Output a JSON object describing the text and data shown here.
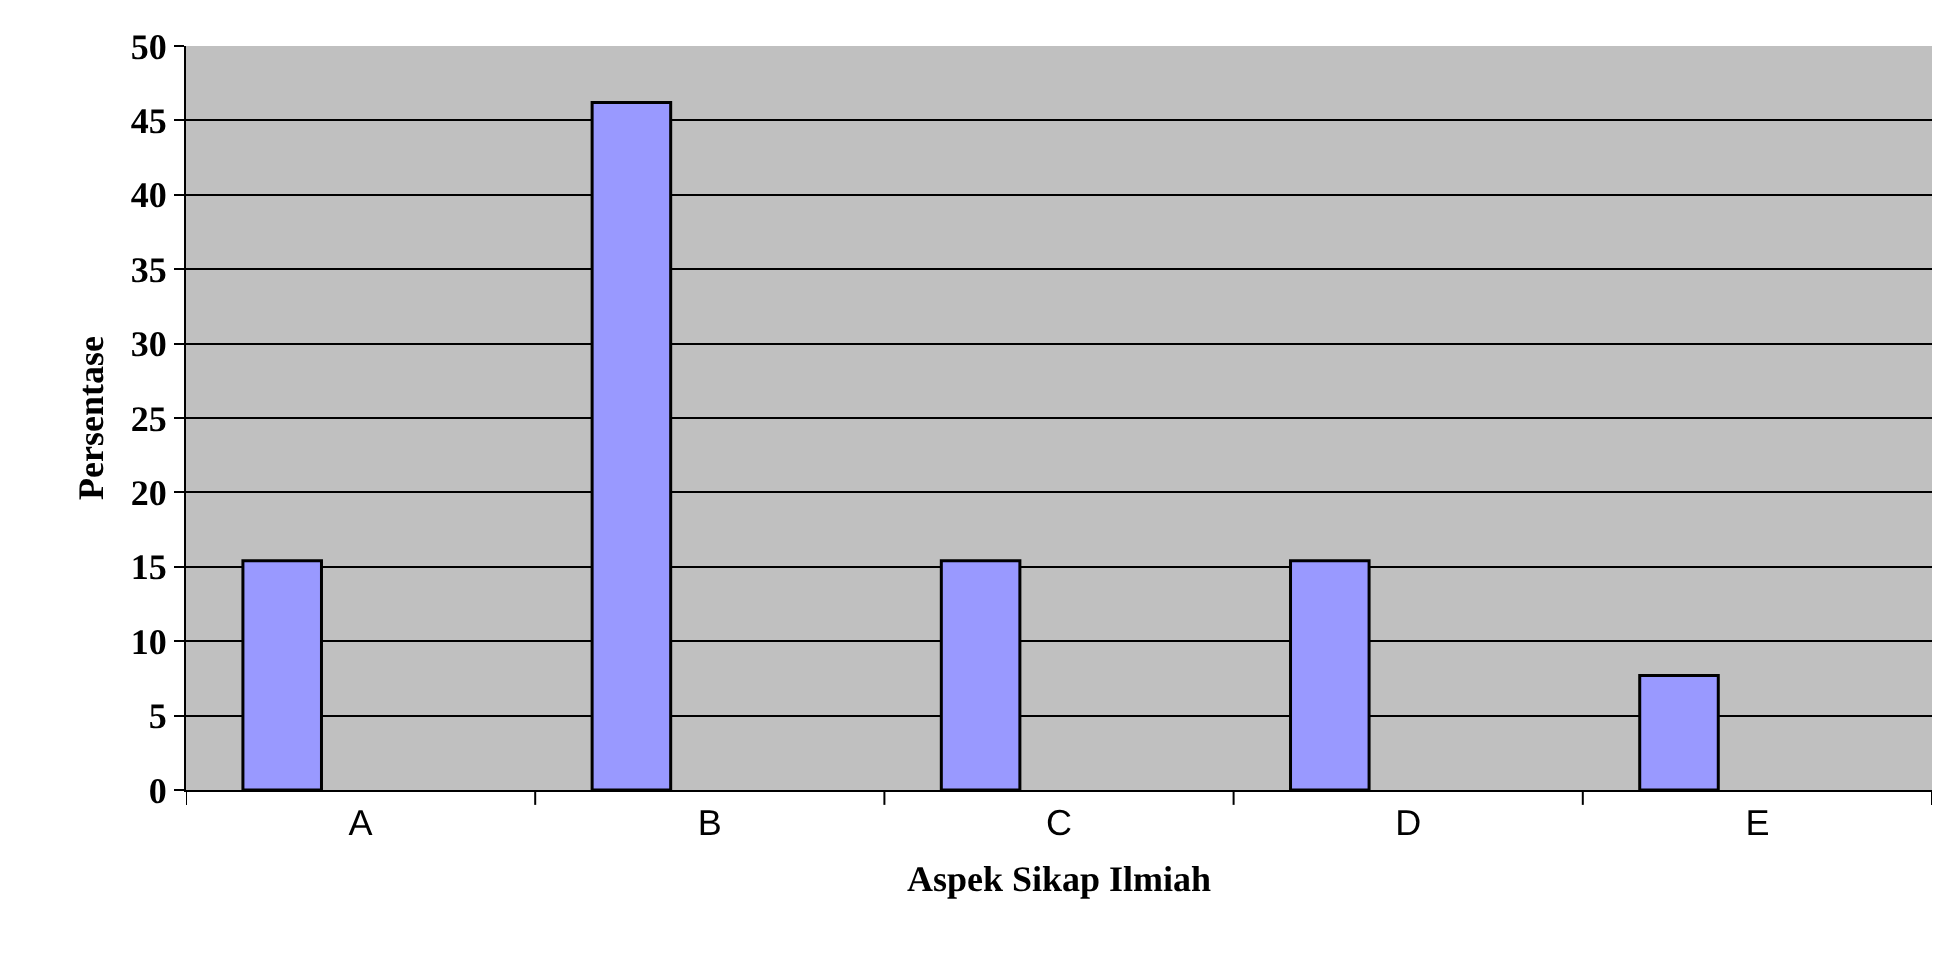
{
  "chart_data": {
    "type": "bar",
    "xlabel": "Aspek Sikap Ilmiah",
    "ylabel": "Persentase",
    "categories": [
      "A",
      "B",
      "C",
      "D",
      "E"
    ],
    "values": [
      15.4,
      46.2,
      15.4,
      15.4,
      7.7
    ],
    "color": "#9999ff",
    "ylim": [
      0,
      50
    ],
    "yticks": [
      0,
      5,
      10,
      15,
      20,
      25,
      30,
      35,
      40,
      45,
      50
    ],
    "grid": "y",
    "legend": false
  }
}
